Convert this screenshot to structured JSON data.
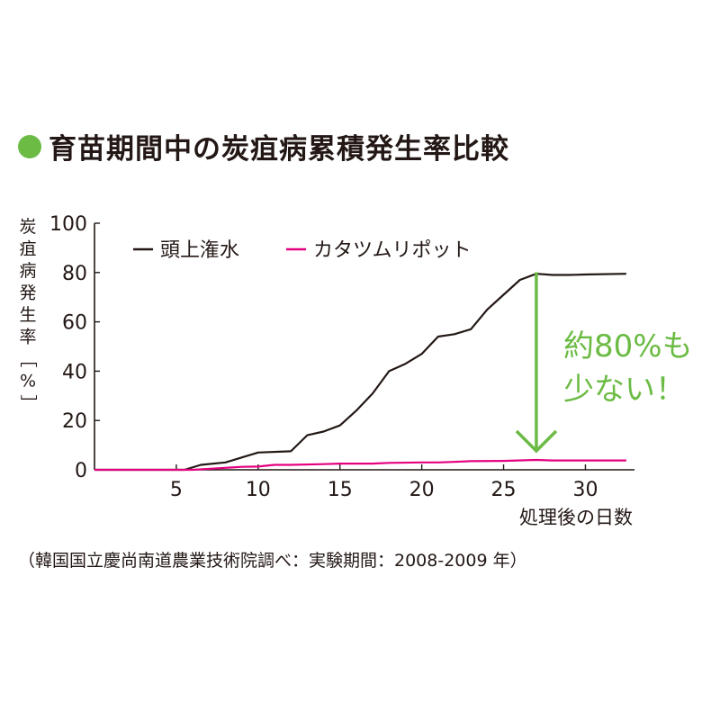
{
  "title": "育苗期間中の炭疽病累積発生率比較",
  "colors": {
    "title_bullet": "#6cbb45",
    "series_overhead": "#231815",
    "series_snail": "#e4007f",
    "annotation": "#6cbb45",
    "axis": "#231815"
  },
  "chart_data": {
    "type": "line",
    "title": "育苗期間中の炭疽病累積発生率比較",
    "xlabel": "処理後の日数",
    "ylabel": "炭疽病発生率［%］",
    "ylabel_chars": [
      "炭",
      "疽",
      "病",
      "発",
      "生",
      "率",
      "［",
      "%",
      "］"
    ],
    "xlim": [
      0,
      33
    ],
    "ylim": [
      0,
      100
    ],
    "xticks": [
      5,
      10,
      15,
      20,
      25,
      30
    ],
    "yticks": [
      0,
      20,
      40,
      60,
      80,
      100
    ],
    "grid": false,
    "legend_position": "top-left",
    "series": [
      {
        "name": "頭上潅水",
        "color": "#231815",
        "points": [
          [
            0,
            0
          ],
          [
            5.5,
            0
          ],
          [
            6.5,
            2
          ],
          [
            8,
            3
          ],
          [
            9,
            5
          ],
          [
            10,
            7
          ],
          [
            12,
            7.5
          ],
          [
            13,
            14
          ],
          [
            14,
            15.5
          ],
          [
            15,
            18
          ],
          [
            16,
            24
          ],
          [
            17,
            31
          ],
          [
            18,
            40
          ],
          [
            19,
            43
          ],
          [
            20,
            47
          ],
          [
            21,
            54
          ],
          [
            22,
            55
          ],
          [
            23,
            57
          ],
          [
            24,
            65
          ],
          [
            25,
            71
          ],
          [
            26,
            77
          ],
          [
            27,
            79.5
          ],
          [
            28,
            79
          ],
          [
            29,
            79
          ],
          [
            30,
            79.2
          ],
          [
            32.5,
            79.5
          ]
        ]
      },
      {
        "name": "カタツムリポット",
        "color": "#e4007f",
        "points": [
          [
            0,
            0
          ],
          [
            6,
            0
          ],
          [
            8,
            0.8
          ],
          [
            9,
            1.2
          ],
          [
            10,
            1.3
          ],
          [
            11,
            2
          ],
          [
            12,
            2
          ],
          [
            14,
            2.3
          ],
          [
            15,
            2.5
          ],
          [
            17,
            2.5
          ],
          [
            18,
            2.8
          ],
          [
            20,
            3
          ],
          [
            21,
            3
          ],
          [
            22,
            3.2
          ],
          [
            23,
            3.5
          ],
          [
            25,
            3.6
          ],
          [
            27,
            4
          ],
          [
            28,
            3.8
          ],
          [
            30,
            3.8
          ],
          [
            32.5,
            3.8
          ]
        ]
      }
    ],
    "annotation": {
      "text_line1": "約80%も",
      "text_line2": "少ない！",
      "arrow_x": 27,
      "arrow_from_y": 79,
      "arrow_to_y": 4
    }
  },
  "source_note": "（韓国国立慶尚南道農業技術院調べ：実験期間：2008-2009 年）"
}
